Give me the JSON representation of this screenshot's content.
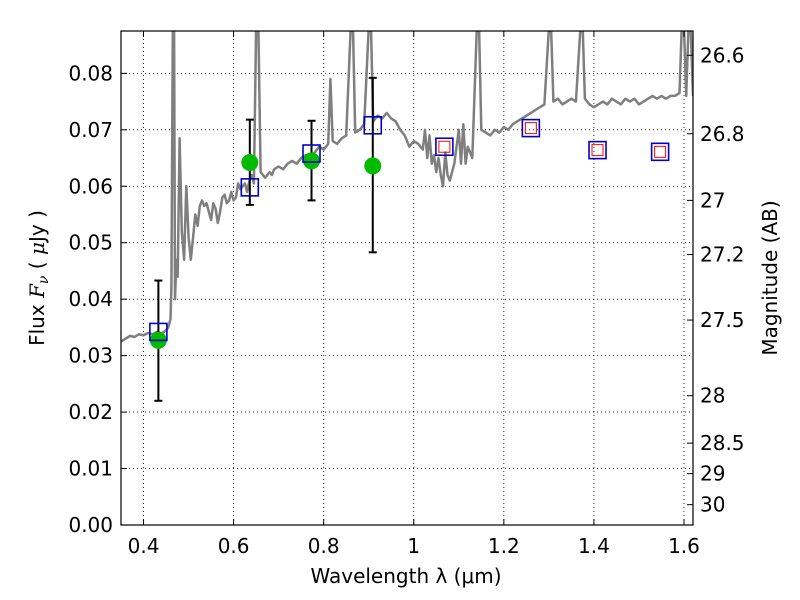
{
  "chart_data": {
    "type": "scatter",
    "xlabel": "Wavelength  λ (μm)",
    "ylabel_parts": [
      "Flux  ",
      "F",
      "ν",
      "  ( ",
      "μ",
      "Jy )"
    ],
    "ylabel_right": "Magnitude (AB)",
    "xlim": [
      0.35,
      1.62
    ],
    "ylim": [
      0.0,
      0.0875
    ],
    "grid": true,
    "x_ticks": [
      0.4,
      0.6,
      0.8,
      1.0,
      1.2,
      1.4,
      1.6
    ],
    "x_tick_labels": [
      "0.4",
      "0.6",
      "0.8",
      "1",
      "1.2",
      "1.4",
      "1.6"
    ],
    "y_ticks": [
      0.0,
      0.01,
      0.02,
      0.03,
      0.04,
      0.05,
      0.06,
      0.07,
      0.08
    ],
    "y_tick_labels": [
      "0.00",
      "0.01",
      "0.02",
      "0.03",
      "0.04",
      "0.05",
      "0.06",
      "0.07",
      "0.08"
    ],
    "right_ticks": [
      {
        "label": "26.6",
        "flux": 0.0832
      },
      {
        "label": "26.8",
        "flux": 0.0693
      },
      {
        "label": "27",
        "flux": 0.0575
      },
      {
        "label": "27.2",
        "flux": 0.0479
      },
      {
        "label": "27.5",
        "flux": 0.0363
      },
      {
        "label": "28",
        "flux": 0.0229
      },
      {
        "label": "28.5",
        "flux": 0.0145
      },
      {
        "label": "29",
        "flux": 0.0091
      },
      {
        "label": "30",
        "flux": 0.0036
      }
    ],
    "colors": {
      "spectrum": "#7f7f7f",
      "observed": "#00bb00",
      "errorbar": "#000000",
      "model_square": "#0000cc",
      "model_square_inner": "#ff0000"
    },
    "series": [
      {
        "kind": "spectrum",
        "points": [
          [
            0.35,
            0.0325
          ],
          [
            0.36,
            0.033
          ],
          [
            0.37,
            0.0335
          ],
          [
            0.38,
            0.0333
          ],
          [
            0.39,
            0.0338
          ],
          [
            0.4,
            0.0336
          ],
          [
            0.41,
            0.034
          ],
          [
            0.42,
            0.0338
          ],
          [
            0.43,
            0.0342
          ],
          [
            0.44,
            0.0339
          ],
          [
            0.45,
            0.0345
          ],
          [
            0.455,
            0.035
          ],
          [
            0.46,
            0.0365
          ],
          [
            0.462,
            0.042
          ],
          [
            0.465,
            0.088
          ],
          [
            0.468,
            0.088
          ],
          [
            0.47,
            0.04
          ],
          [
            0.473,
            0.047
          ],
          [
            0.476,
            0.044
          ],
          [
            0.48,
            0.0685
          ],
          [
            0.485,
            0.052
          ],
          [
            0.49,
            0.047
          ],
          [
            0.495,
            0.06
          ],
          [
            0.5,
            0.051
          ],
          [
            0.505,
            0.047
          ],
          [
            0.51,
            0.051
          ],
          [
            0.515,
            0.055
          ],
          [
            0.52,
            0.053
          ],
          [
            0.525,
            0.0565
          ],
          [
            0.53,
            0.0575
          ],
          [
            0.535,
            0.0565
          ],
          [
            0.54,
            0.057
          ],
          [
            0.545,
            0.0555
          ],
          [
            0.55,
            0.054
          ],
          [
            0.555,
            0.057
          ],
          [
            0.56,
            0.056
          ],
          [
            0.565,
            0.0535
          ],
          [
            0.57,
            0.0555
          ],
          [
            0.575,
            0.058
          ],
          [
            0.58,
            0.0585
          ],
          [
            0.585,
            0.057
          ],
          [
            0.59,
            0.0575
          ],
          [
            0.595,
            0.059
          ],
          [
            0.6,
            0.0575
          ],
          [
            0.605,
            0.058
          ],
          [
            0.61,
            0.0605
          ],
          [
            0.615,
            0.0595
          ],
          [
            0.62,
            0.06
          ],
          [
            0.625,
            0.0605
          ],
          [
            0.63,
            0.059
          ],
          [
            0.635,
            0.061
          ],
          [
            0.64,
            0.062
          ],
          [
            0.645,
            0.0605
          ],
          [
            0.65,
            0.088
          ],
          [
            0.655,
            0.088
          ],
          [
            0.66,
            0.0625
          ],
          [
            0.665,
            0.062
          ],
          [
            0.67,
            0.0615
          ],
          [
            0.675,
            0.062
          ],
          [
            0.68,
            0.0625
          ],
          [
            0.685,
            0.062
          ],
          [
            0.69,
            0.063
          ],
          [
            0.7,
            0.0635
          ],
          [
            0.71,
            0.063
          ],
          [
            0.72,
            0.064
          ],
          [
            0.73,
            0.0645
          ],
          [
            0.74,
            0.064
          ],
          [
            0.75,
            0.065
          ],
          [
            0.76,
            0.0655
          ],
          [
            0.77,
            0.065
          ],
          [
            0.78,
            0.066
          ],
          [
            0.79,
            0.067
          ],
          [
            0.8,
            0.0665
          ],
          [
            0.81,
            0.0675
          ],
          [
            0.815,
            0.079
          ],
          [
            0.82,
            0.068
          ],
          [
            0.83,
            0.0675
          ],
          [
            0.84,
            0.0685
          ],
          [
            0.85,
            0.069
          ],
          [
            0.86,
            0.088
          ],
          [
            0.865,
            0.088
          ],
          [
            0.87,
            0.0695
          ],
          [
            0.88,
            0.07
          ],
          [
            0.89,
            0.071
          ],
          [
            0.9,
            0.088
          ],
          [
            0.905,
            0.088
          ],
          [
            0.91,
            0.0715
          ],
          [
            0.92,
            0.0725
          ],
          [
            0.93,
            0.072
          ],
          [
            0.94,
            0.073
          ],
          [
            0.95,
            0.072
          ],
          [
            0.96,
            0.0715
          ],
          [
            0.97,
            0.07
          ],
          [
            0.98,
            0.069
          ],
          [
            0.99,
            0.067
          ],
          [
            1.0,
            0.068
          ],
          [
            1.01,
            0.0675
          ],
          [
            1.02,
            0.0665
          ],
          [
            1.025,
            0.07
          ],
          [
            1.03,
            0.065
          ],
          [
            1.035,
            0.069
          ],
          [
            1.04,
            0.064
          ],
          [
            1.045,
            0.0655
          ],
          [
            1.05,
            0.0625
          ],
          [
            1.055,
            0.065
          ],
          [
            1.06,
            0.062
          ],
          [
            1.065,
            0.06
          ],
          [
            1.07,
            0.066
          ],
          [
            1.075,
            0.062
          ],
          [
            1.08,
            0.061
          ],
          [
            1.09,
            0.064
          ],
          [
            1.1,
            0.07
          ],
          [
            1.105,
            0.064
          ],
          [
            1.11,
            0.071
          ],
          [
            1.115,
            0.064
          ],
          [
            1.12,
            0.067
          ],
          [
            1.13,
            0.065
          ],
          [
            1.14,
            0.088
          ],
          [
            1.145,
            0.088
          ],
          [
            1.15,
            0.07
          ],
          [
            1.16,
            0.0695
          ],
          [
            1.17,
            0.069
          ],
          [
            1.18,
            0.07
          ],
          [
            1.19,
            0.0695
          ],
          [
            1.2,
            0.0705
          ],
          [
            1.21,
            0.07
          ],
          [
            1.22,
            0.071
          ],
          [
            1.23,
            0.0715
          ],
          [
            1.24,
            0.072
          ],
          [
            1.25,
            0.0725
          ],
          [
            1.26,
            0.073
          ],
          [
            1.27,
            0.0735
          ],
          [
            1.28,
            0.074
          ],
          [
            1.29,
            0.0745
          ],
          [
            1.3,
            0.088
          ],
          [
            1.305,
            0.088
          ],
          [
            1.31,
            0.075
          ],
          [
            1.32,
            0.0755
          ],
          [
            1.33,
            0.0745
          ],
          [
            1.34,
            0.075
          ],
          [
            1.35,
            0.0755
          ],
          [
            1.36,
            0.075
          ],
          [
            1.37,
            0.088
          ],
          [
            1.375,
            0.088
          ],
          [
            1.38,
            0.0755
          ],
          [
            1.39,
            0.0745
          ],
          [
            1.4,
            0.074
          ],
          [
            1.41,
            0.0745
          ],
          [
            1.42,
            0.075
          ],
          [
            1.43,
            0.0745
          ],
          [
            1.44,
            0.0755
          ],
          [
            1.45,
            0.075
          ],
          [
            1.46,
            0.0745
          ],
          [
            1.47,
            0.0755
          ],
          [
            1.48,
            0.075
          ],
          [
            1.49,
            0.0755
          ],
          [
            1.5,
            0.0745
          ],
          [
            1.51,
            0.075
          ],
          [
            1.52,
            0.0755
          ],
          [
            1.53,
            0.076
          ],
          [
            1.54,
            0.0755
          ],
          [
            1.55,
            0.076
          ],
          [
            1.56,
            0.0755
          ],
          [
            1.57,
            0.076
          ],
          [
            1.58,
            0.076
          ],
          [
            1.59,
            0.0765
          ],
          [
            1.595,
            0.088
          ],
          [
            1.6,
            0.088
          ],
          [
            1.605,
            0.076
          ],
          [
            1.61,
            0.088
          ],
          [
            1.615,
            0.088
          ],
          [
            1.62,
            0.076
          ]
        ]
      },
      {
        "kind": "observed",
        "points": [
          {
            "x": 0.433,
            "y": 0.0327,
            "lo": 0.022,
            "hi": 0.0433
          },
          {
            "x": 0.636,
            "y": 0.0642,
            "lo": 0.0567,
            "hi": 0.0718
          },
          {
            "x": 0.773,
            "y": 0.0645,
            "lo": 0.0575,
            "hi": 0.0716
          },
          {
            "x": 0.909,
            "y": 0.0636,
            "lo": 0.0483,
            "hi": 0.0792
          }
        ]
      },
      {
        "kind": "model",
        "points": [
          {
            "x": 0.433,
            "y": 0.0342,
            "inner": false
          },
          {
            "x": 0.636,
            "y": 0.0598,
            "inner": false
          },
          {
            "x": 0.773,
            "y": 0.0658,
            "inner": false
          },
          {
            "x": 0.909,
            "y": 0.0708,
            "inner": false
          },
          {
            "x": 1.068,
            "y": 0.067,
            "inner": true
          },
          {
            "x": 1.26,
            "y": 0.0703,
            "inner": true
          },
          {
            "x": 1.408,
            "y": 0.0664,
            "inner": true
          },
          {
            "x": 1.547,
            "y": 0.0661,
            "inner": true
          }
        ]
      }
    ]
  }
}
